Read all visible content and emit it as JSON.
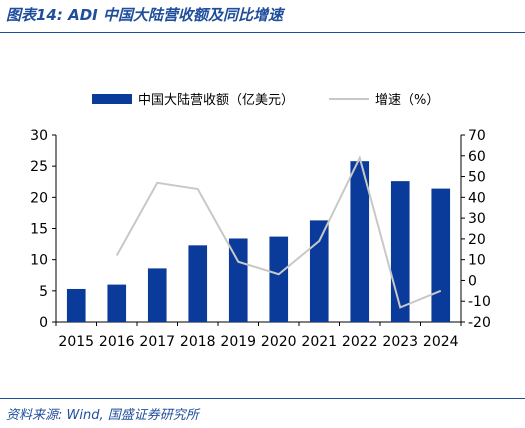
{
  "header": {
    "title": "图表14:  ADI 中国大陆营收额及同比增速"
  },
  "footer": {
    "source": "资料来源:  Wind, 国盛证券研究所"
  },
  "colors": {
    "bar": "#0a3b9a",
    "line": "#c8c8c8",
    "title": "#1f4e9c"
  },
  "chart_data": {
    "type": "bar",
    "categories": [
      "2015",
      "2016",
      "2017",
      "2018",
      "2019",
      "2020",
      "2021",
      "2022",
      "2023",
      "2024"
    ],
    "series": [
      {
        "name": "中国大陆营收额（亿美元）",
        "kind": "bar",
        "axis": "left",
        "values": [
          5.3,
          6.0,
          8.6,
          12.3,
          13.4,
          13.7,
          16.3,
          25.8,
          22.6,
          21.4
        ]
      },
      {
        "name": "增速（%）",
        "kind": "line",
        "axis": "right",
        "values": [
          null,
          12,
          47,
          44,
          9,
          3,
          19,
          59,
          -13,
          -5
        ]
      }
    ],
    "y_left": {
      "ylim": [
        0,
        30
      ],
      "ticks": [
        "0",
        "5",
        "10",
        "15",
        "20",
        "25",
        "30"
      ]
    },
    "y_right": {
      "ylim": [
        -20,
        70
      ],
      "ticks": [
        "-20",
        "-10",
        "0",
        "10",
        "20",
        "30",
        "40",
        "50",
        "60",
        "70"
      ]
    },
    "legend_position": "top",
    "grid": false
  }
}
